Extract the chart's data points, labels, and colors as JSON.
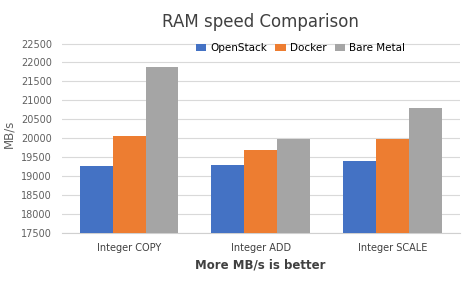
{
  "title": "RAM speed Comparison",
  "xlabel": "More MB/s is better",
  "ylabel": "MB/s",
  "categories": [
    "Integer COPY",
    "Integer ADD",
    "Integer SCALE"
  ],
  "series": [
    {
      "label": "OpenStack",
      "color": "#4472C4",
      "values": [
        19272.18,
        19305.25,
        19387.26
      ]
    },
    {
      "label": "Docker",
      "color": "#ED7D31",
      "values": [
        20060.37,
        19691.25,
        19987.47
      ]
    },
    {
      "label": "Bare Metal",
      "color": "#A5A5A5",
      "values": [
        21885.57,
        19972.97,
        20787.0
      ]
    }
  ],
  "ylim": [
    17500,
    22750
  ],
  "yticks": [
    17500,
    18000,
    18500,
    19000,
    19500,
    20000,
    20500,
    21000,
    21500,
    22000,
    22500
  ],
  "bar_width": 0.25,
  "background_color": "#ffffff",
  "title_fontsize": 12,
  "axis_label_fontsize": 8.5,
  "tick_fontsize": 7,
  "legend_fontsize": 7.5,
  "value_label_fontsize": 5.5,
  "grid_color": "#d9d9d9"
}
